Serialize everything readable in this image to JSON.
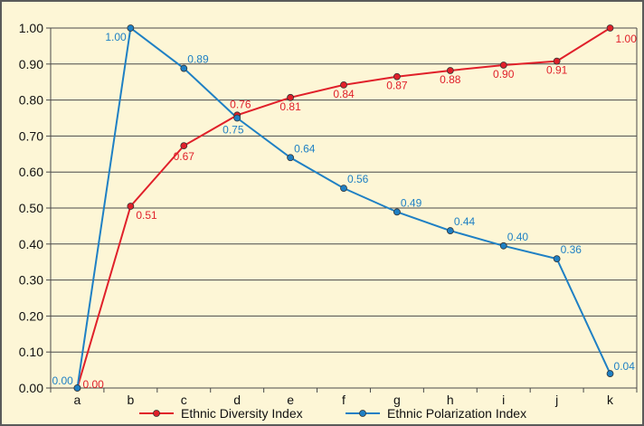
{
  "chart_data": {
    "type": "line",
    "categories": [
      "a",
      "b",
      "c",
      "d",
      "e",
      "f",
      "g",
      "h",
      "i",
      "j",
      "k"
    ],
    "ylim": [
      0,
      1
    ],
    "yticks": [
      "0.00",
      "0.10",
      "0.20",
      "0.30",
      "0.40",
      "0.50",
      "0.60",
      "0.70",
      "0.80",
      "0.90",
      "1.00"
    ],
    "grid": "horizontal",
    "legend_position": "bottom",
    "series": [
      {
        "name": "Ethnic Diversity Index",
        "color": "#e0202a",
        "values": [
          0.0,
          0.505,
          0.673,
          0.758,
          0.807,
          0.842,
          0.865,
          0.882,
          0.897,
          0.908,
          1.0
        ],
        "labels": [
          "0.00",
          "0.51",
          "0.67",
          "0.76",
          "0.81",
          "0.84",
          "0.87",
          "0.88",
          "0.90",
          "0.91",
          "1.00"
        ]
      },
      {
        "name": "Ethnic Polarization Index",
        "color": "#1f80c4",
        "values": [
          0.0,
          1.0,
          0.888,
          0.75,
          0.64,
          0.555,
          0.489,
          0.437,
          0.395,
          0.359,
          0.04
        ],
        "labels": [
          "0.00",
          "1.00",
          "0.89",
          "0.75",
          "0.64",
          "0.56",
          "0.49",
          "0.44",
          "0.40",
          "0.36",
          "0.04"
        ]
      }
    ]
  }
}
